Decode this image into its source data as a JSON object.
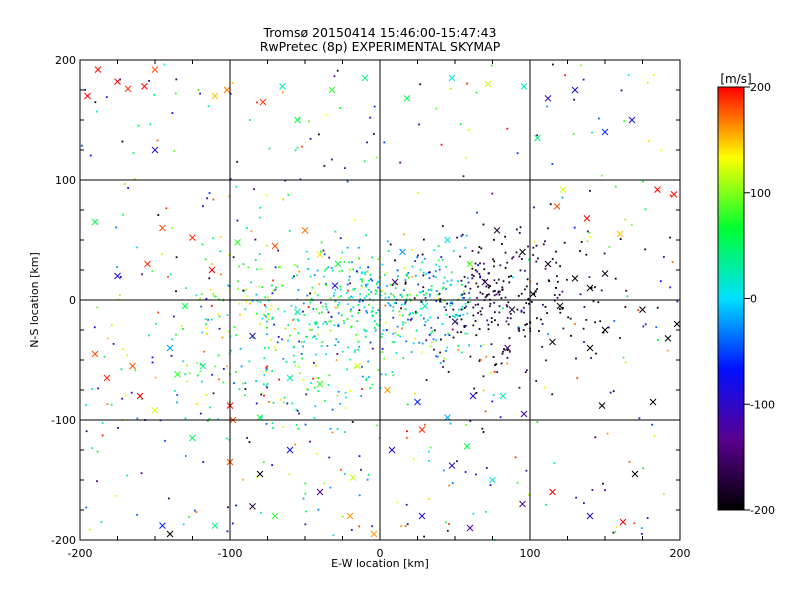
{
  "chart_data": {
    "type": "scatter",
    "title": "Tromsø 20150414 15:46:00-15:47:43",
    "subtitle": "RwPretec (8p) EXPERIMENTAL SKYMAP",
    "xlabel": "E-W location [km]",
    "ylabel": "N-S location [km]",
    "xlim": [
      -200,
      200
    ],
    "ylim": [
      -200,
      200
    ],
    "xticks": [
      -200,
      -100,
      0,
      100,
      200
    ],
    "yticks": [
      -200,
      -100,
      0,
      100,
      200
    ],
    "grid": true,
    "markers": [
      "x",
      "dot"
    ],
    "colorbar": {
      "label": "[m/s]",
      "range": [
        -200,
        200
      ],
      "ticks": [
        200,
        100,
        0,
        -100,
        -200
      ],
      "colormap": "rainbow (black-purple-blue-cyan-green-yellow-red)",
      "stops": [
        "#000000",
        "#5a0090",
        "#0010ff",
        "#00e0ff",
        "#00ff30",
        "#ffff00",
        "#ff0000"
      ]
    },
    "x_markers": [
      {
        "x": -195,
        "y": 170,
        "v": 200
      },
      {
        "x": -175,
        "y": 182,
        "v": 200
      },
      {
        "x": -168,
        "y": 176,
        "v": 190
      },
      {
        "x": -157,
        "y": 178,
        "v": 200
      },
      {
        "x": -150,
        "y": 192,
        "v": 180
      },
      {
        "x": -188,
        "y": 192,
        "v": 200
      },
      {
        "x": -110,
        "y": 170,
        "v": 150
      },
      {
        "x": -102,
        "y": 175,
        "v": 170
      },
      {
        "x": -78,
        "y": 165,
        "v": 185
      },
      {
        "x": -65,
        "y": 178,
        "v": 20
      },
      {
        "x": -55,
        "y": 150,
        "v": 60
      },
      {
        "x": -32,
        "y": 175,
        "v": 80
      },
      {
        "x": -10,
        "y": 185,
        "v": 40
      },
      {
        "x": 18,
        "y": 168,
        "v": 60
      },
      {
        "x": 48,
        "y": 185,
        "v": 10
      },
      {
        "x": 72,
        "y": 180,
        "v": 120
      },
      {
        "x": 96,
        "y": 178,
        "v": 20
      },
      {
        "x": 112,
        "y": 168,
        "v": -100
      },
      {
        "x": 130,
        "y": 175,
        "v": -80
      },
      {
        "x": 168,
        "y": 150,
        "v": -90
      },
      {
        "x": 150,
        "y": 140,
        "v": -60
      },
      {
        "x": -150,
        "y": 125,
        "v": -100
      },
      {
        "x": 105,
        "y": 135,
        "v": 40
      },
      {
        "x": 185,
        "y": 92,
        "v": 200
      },
      {
        "x": 196,
        "y": 88,
        "v": 200
      },
      {
        "x": 122,
        "y": 92,
        "v": 120
      },
      {
        "x": 118,
        "y": 78,
        "v": 180
      },
      {
        "x": 138,
        "y": 68,
        "v": 200
      },
      {
        "x": 160,
        "y": 55,
        "v": 150
      },
      {
        "x": -190,
        "y": 65,
        "v": 60
      },
      {
        "x": -175,
        "y": 20,
        "v": -90
      },
      {
        "x": -155,
        "y": 30,
        "v": 190
      },
      {
        "x": -145,
        "y": 60,
        "v": 180
      },
      {
        "x": -125,
        "y": 52,
        "v": 190
      },
      {
        "x": -112,
        "y": 25,
        "v": 200
      },
      {
        "x": -95,
        "y": 48,
        "v": 80
      },
      {
        "x": -70,
        "y": 45,
        "v": 180
      },
      {
        "x": -50,
        "y": 58,
        "v": 170
      },
      {
        "x": -40,
        "y": 38,
        "v": 140
      },
      {
        "x": -28,
        "y": 30,
        "v": 60
      },
      {
        "x": 15,
        "y": 40,
        "v": -20
      },
      {
        "x": 45,
        "y": 50,
        "v": 0
      },
      {
        "x": 60,
        "y": 30,
        "v": 90
      },
      {
        "x": 78,
        "y": 58,
        "v": -180
      },
      {
        "x": 95,
        "y": 40,
        "v": -200
      },
      {
        "x": 112,
        "y": 30,
        "v": -190
      },
      {
        "x": 130,
        "y": 18,
        "v": -200
      },
      {
        "x": 150,
        "y": 22,
        "v": -190
      },
      {
        "x": 102,
        "y": 5,
        "v": -200
      },
      {
        "x": 88,
        "y": -8,
        "v": -180
      },
      {
        "x": 120,
        "y": -5,
        "v": -200
      },
      {
        "x": 140,
        "y": 10,
        "v": -200
      },
      {
        "x": 175,
        "y": -8,
        "v": -200
      },
      {
        "x": 198,
        "y": -20,
        "v": -200
      },
      {
        "x": 192,
        "y": -32,
        "v": -200
      },
      {
        "x": 150,
        "y": -25,
        "v": -200
      },
      {
        "x": 115,
        "y": -35,
        "v": -190
      },
      {
        "x": 85,
        "y": -40,
        "v": -150
      },
      {
        "x": -190,
        "y": -45,
        "v": 180
      },
      {
        "x": -182,
        "y": -65,
        "v": 190
      },
      {
        "x": -165,
        "y": -55,
        "v": 180
      },
      {
        "x": -160,
        "y": -80,
        "v": 200
      },
      {
        "x": -150,
        "y": -92,
        "v": 120
      },
      {
        "x": -135,
        "y": -62,
        "v": 80
      },
      {
        "x": -118,
        "y": -55,
        "v": 40
      },
      {
        "x": -100,
        "y": -88,
        "v": 200
      },
      {
        "x": -98,
        "y": -100,
        "v": 180
      },
      {
        "x": -80,
        "y": -98,
        "v": 60
      },
      {
        "x": -60,
        "y": -65,
        "v": 30
      },
      {
        "x": -40,
        "y": -70,
        "v": 80
      },
      {
        "x": -15,
        "y": -55,
        "v": 120
      },
      {
        "x": 5,
        "y": -75,
        "v": 160
      },
      {
        "x": 25,
        "y": -85,
        "v": -60
      },
      {
        "x": 45,
        "y": -98,
        "v": -20
      },
      {
        "x": 62,
        "y": -80,
        "v": -100
      },
      {
        "x": 82,
        "y": -80,
        "v": 20
      },
      {
        "x": 96,
        "y": -95,
        "v": -120
      },
      {
        "x": 148,
        "y": -88,
        "v": -200
      },
      {
        "x": 182,
        "y": -85,
        "v": -200
      },
      {
        "x": -125,
        "y": -115,
        "v": 60
      },
      {
        "x": -100,
        "y": -135,
        "v": 180
      },
      {
        "x": -80,
        "y": -145,
        "v": -200
      },
      {
        "x": -60,
        "y": -125,
        "v": -80
      },
      {
        "x": -40,
        "y": -160,
        "v": -120
      },
      {
        "x": -18,
        "y": -148,
        "v": 120
      },
      {
        "x": 8,
        "y": -125,
        "v": -90
      },
      {
        "x": 28,
        "y": -108,
        "v": 190
      },
      {
        "x": 48,
        "y": -138,
        "v": -100
      },
      {
        "x": 58,
        "y": -122,
        "v": 60
      },
      {
        "x": 75,
        "y": -150,
        "v": 20
      },
      {
        "x": 95,
        "y": -170,
        "v": -120
      },
      {
        "x": 115,
        "y": -160,
        "v": 200
      },
      {
        "x": 170,
        "y": -145,
        "v": -200
      },
      {
        "x": 162,
        "y": -185,
        "v": 200
      },
      {
        "x": -145,
        "y": -188,
        "v": -60
      },
      {
        "x": -140,
        "y": -195,
        "v": -200
      },
      {
        "x": -110,
        "y": -188,
        "v": 40
      },
      {
        "x": -85,
        "y": -172,
        "v": -180
      },
      {
        "x": -70,
        "y": -180,
        "v": 80
      },
      {
        "x": -20,
        "y": -180,
        "v": 160
      },
      {
        "x": -4,
        "y": -195,
        "v": 160
      },
      {
        "x": 28,
        "y": -180,
        "v": -100
      },
      {
        "x": 60,
        "y": -190,
        "v": -120
      },
      {
        "x": 140,
        "y": -180,
        "v": -100
      },
      {
        "x": -130,
        "y": -5,
        "v": 60
      },
      {
        "x": -140,
        "y": -40,
        "v": -20
      },
      {
        "x": -85,
        "y": -30,
        "v": -100
      },
      {
        "x": -55,
        "y": -10,
        "v": 20
      },
      {
        "x": -30,
        "y": 12,
        "v": -80
      },
      {
        "x": 10,
        "y": 15,
        "v": -150
      },
      {
        "x": 30,
        "y": -5,
        "v": 20
      },
      {
        "x": 50,
        "y": -18,
        "v": -160
      },
      {
        "x": 70,
        "y": 15,
        "v": -170
      },
      {
        "x": 140,
        "y": -40,
        "v": -200
      }
    ]
  }
}
